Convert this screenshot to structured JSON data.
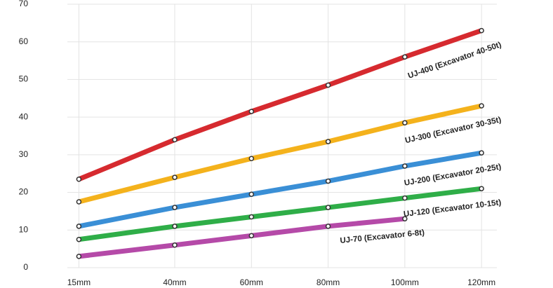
{
  "chart_data": {
    "type": "line",
    "x": [
      15,
      40,
      60,
      80,
      100,
      120
    ],
    "xlim": [
      12,
      124
    ],
    "xticks": [
      {
        "value": 15,
        "label": "15mm"
      },
      {
        "value": 40,
        "label": "40mm"
      },
      {
        "value": 60,
        "label": "60mm"
      },
      {
        "value": 80,
        "label": "80mm"
      },
      {
        "value": 100,
        "label": "100mm"
      },
      {
        "value": 120,
        "label": "120mm"
      }
    ],
    "ylim": [
      0,
      70
    ],
    "yticks": [
      0,
      10,
      20,
      30,
      40,
      50,
      60,
      70
    ],
    "grid": true,
    "series": [
      {
        "name": "UJ-400 (Excavator 40-50t)",
        "color": "#d62a2f",
        "values": [
          23.5,
          34,
          41.5,
          48.5,
          56,
          63
        ]
      },
      {
        "name": "UJ-300 (Excavator 30-35t)",
        "color": "#f4b21c",
        "values": [
          17.5,
          24,
          29,
          33.5,
          38.5,
          43
        ]
      },
      {
        "name": "UJ-200 (Excavator 20-25t)",
        "color": "#3a8fd6",
        "values": [
          11,
          16,
          19.5,
          23,
          27,
          30.5
        ]
      },
      {
        "name": "UJ-120 (Excavator 10-15t)",
        "color": "#2fae48",
        "values": [
          7.5,
          11,
          13.5,
          16,
          18.5,
          21
        ]
      },
      {
        "name": "UJ-70 (Excavator 6-8t)",
        "color": "#b54aa8",
        "values": [
          3,
          6,
          8.5,
          11,
          13,
          null
        ]
      }
    ]
  }
}
